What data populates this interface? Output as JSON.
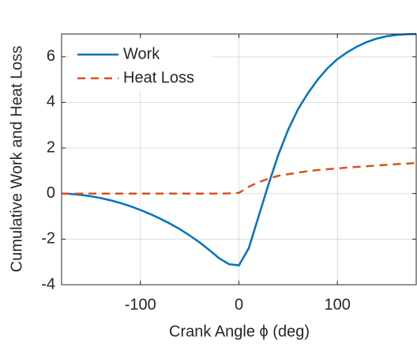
{
  "chart_data": {
    "type": "line",
    "xlabel": "Crank Angle ϕ (deg)",
    "ylabel": "Cumulative Work and Heat Loss",
    "x": [
      -180,
      -170,
      -160,
      -150,
      -140,
      -130,
      -120,
      -110,
      -100,
      -90,
      -80,
      -70,
      -60,
      -50,
      -40,
      -30,
      -20,
      -10,
      0,
      10,
      20,
      30,
      40,
      50,
      60,
      70,
      80,
      90,
      100,
      110,
      120,
      130,
      140,
      150,
      160,
      170,
      180
    ],
    "series": [
      {
        "name": "Work",
        "color": "#0072BD",
        "dash": false,
        "values": [
          0,
          -0.02,
          -0.06,
          -0.12,
          -0.2,
          -0.3,
          -0.42,
          -0.56,
          -0.72,
          -0.9,
          -1.1,
          -1.32,
          -1.56,
          -1.84,
          -2.14,
          -2.48,
          -2.84,
          -3.1,
          -3.15,
          -2.4,
          -1.0,
          0.4,
          1.7,
          2.8,
          3.7,
          4.4,
          5.0,
          5.5,
          5.9,
          6.2,
          6.45,
          6.65,
          6.8,
          6.9,
          6.96,
          6.99,
          7.0
        ]
      },
      {
        "name": "Heat Loss",
        "color": "#D95319",
        "dash": true,
        "values": [
          0,
          0,
          0,
          0,
          0,
          0,
          0,
          0,
          0,
          0,
          0,
          0,
          0,
          0,
          0,
          0,
          0,
          0.01,
          0.03,
          0.3,
          0.5,
          0.65,
          0.78,
          0.85,
          0.92,
          0.98,
          1.03,
          1.07,
          1.1,
          1.14,
          1.17,
          1.2,
          1.23,
          1.26,
          1.29,
          1.31,
          1.34
        ]
      }
    ],
    "xlim": [
      -180,
      180
    ],
    "xticks": [
      -100,
      0,
      100
    ],
    "ylim": [
      -4,
      7
    ],
    "yticks": [
      -4,
      -2,
      0,
      2,
      4,
      6
    ],
    "grid": true,
    "legend": "northwest"
  }
}
